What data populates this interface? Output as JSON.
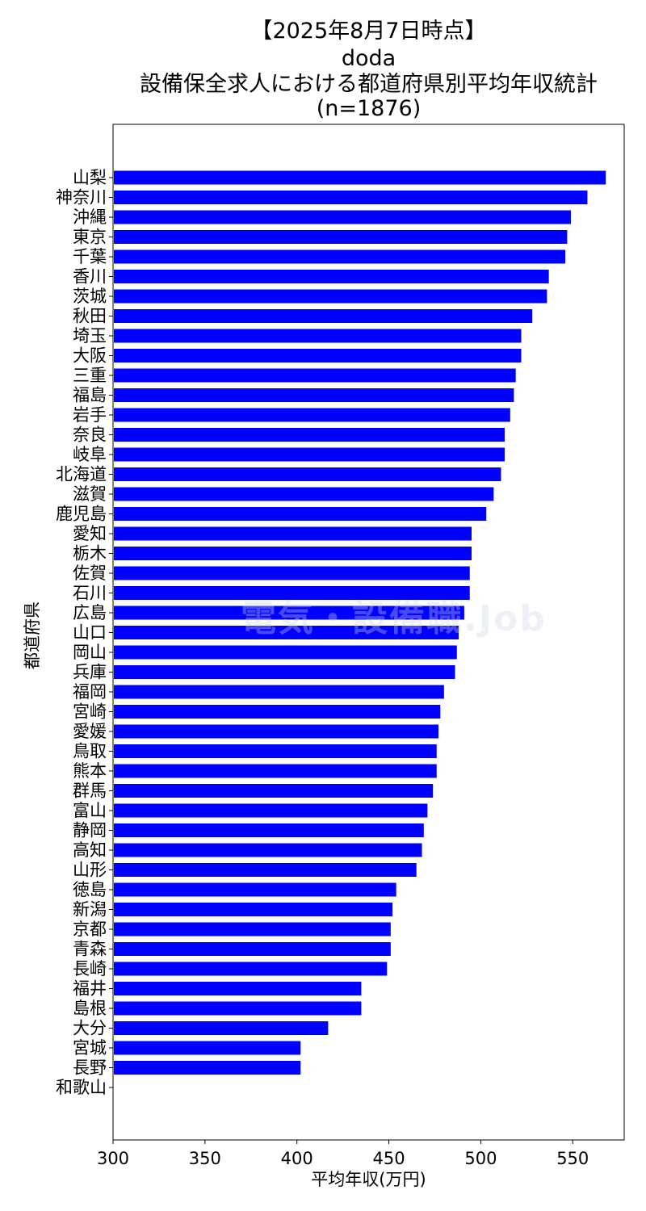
{
  "titles": {
    "line1": "【2025年8月7日時点】",
    "line2": "doda",
    "line3": "設備保全求人における都道府県別平均年収統計",
    "line4": "(n=1876)"
  },
  "watermark": {
    "text": "電気・設備職.Job"
  },
  "chart_data": {
    "type": "bar",
    "orientation": "horizontal",
    "xlabel": "平均年収(万円)",
    "ylabel": "都道府県",
    "xlim": [
      300,
      578
    ],
    "xticks": [
      300,
      350,
      400,
      450,
      500,
      550
    ],
    "bar_color": "#0000ff",
    "grid": false,
    "categories": [
      "山梨",
      "神奈川",
      "沖縄",
      "東京",
      "千葉",
      "香川",
      "茨城",
      "秋田",
      "埼玉",
      "大阪",
      "三重",
      "福島",
      "岩手",
      "奈良",
      "岐阜",
      "北海道",
      "滋賀",
      "鹿児島",
      "愛知",
      "栃木",
      "佐賀",
      "石川",
      "広島",
      "山口",
      "岡山",
      "兵庫",
      "福岡",
      "宮崎",
      "愛媛",
      "鳥取",
      "熊本",
      "群馬",
      "富山",
      "静岡",
      "高知",
      "山形",
      "徳島",
      "新潟",
      "京都",
      "青森",
      "長崎",
      "福井",
      "島根",
      "大分",
      "宮城",
      "長野",
      "和歌山"
    ],
    "values": [
      568,
      558,
      549,
      547,
      546,
      537,
      536,
      528,
      522,
      522,
      519,
      518,
      516,
      513,
      513,
      511,
      507,
      503,
      495,
      495,
      494,
      494,
      491,
      488,
      487,
      486,
      480,
      478,
      477,
      476,
      476,
      474,
      471,
      469,
      468,
      465,
      454,
      452,
      451,
      451,
      449,
      435,
      435,
      417,
      402,
      402,
      null
    ]
  }
}
